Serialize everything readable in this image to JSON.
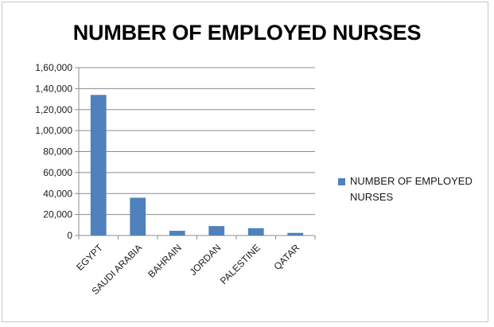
{
  "chart_data": {
    "type": "bar",
    "title": "NUMBER OF EMPLOYED NURSES",
    "categories": [
      "EGYPT",
      "SAUDI ARABIA",
      "BAHRAIN",
      "JORDAN",
      "PALESTINE",
      "QATAR"
    ],
    "series": [
      {
        "name": "NUMBER OF EMPLOYED NURSES",
        "values": [
          134000,
          36000,
          4500,
          9000,
          7000,
          2500
        ],
        "color": "#4f81bd"
      }
    ],
    "yticks": [
      0,
      20000,
      40000,
      60000,
      80000,
      100000,
      120000,
      140000,
      160000
    ],
    "ytick_labels": [
      "0",
      "20,000",
      "40,000",
      "60,000",
      "80,000",
      "1,00,000",
      "1,20,000",
      "1,40,000",
      "1,60,000"
    ],
    "ylim": [
      0,
      160000
    ],
    "grid": true,
    "legend_position": "right"
  }
}
